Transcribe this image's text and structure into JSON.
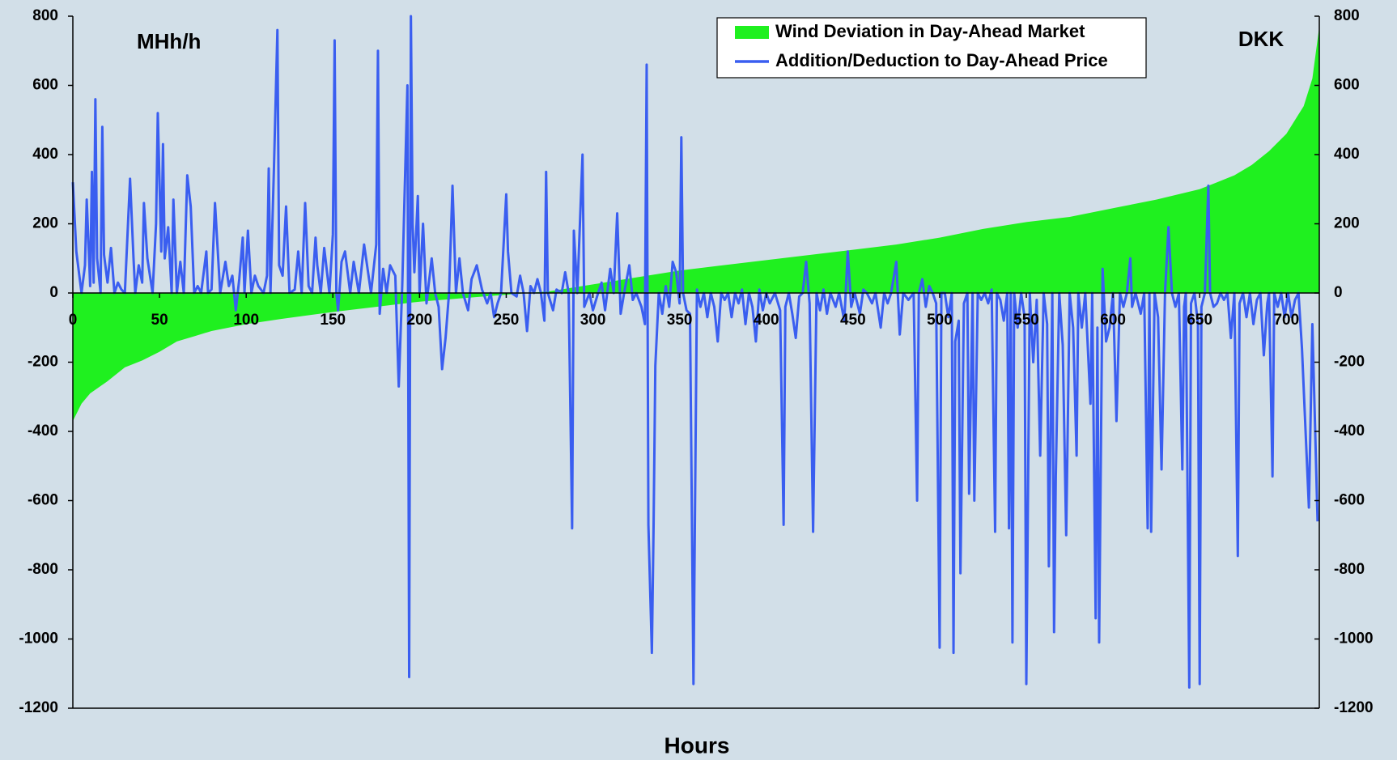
{
  "chart_data": {
    "type": "area-line",
    "x_label": "Hours",
    "annotations": [
      "MHh/h",
      "DKK"
    ],
    "xlim": [
      0,
      719
    ],
    "xticks": [
      0,
      50,
      100,
      150,
      200,
      250,
      300,
      350,
      400,
      450,
      500,
      550,
      600,
      650,
      700
    ],
    "ylim": [
      -1200,
      800
    ],
    "yticks": [
      -1200,
      -1000,
      -800,
      -600,
      -400,
      -200,
      0,
      200,
      400,
      600,
      800
    ],
    "y2lim": [
      -1200,
      800
    ],
    "y2ticks": [
      -1200,
      -1000,
      -800,
      -600,
      -400,
      -200,
      0,
      200,
      400,
      600,
      800
    ],
    "legend": "top-right",
    "series": [
      {
        "name": "Wind Deviation in Day-Ahead Market",
        "kind": "area",
        "color": "#1ff01f",
        "x": [
          0,
          5,
          10,
          20,
          30,
          40,
          50,
          60,
          70,
          80,
          100,
          120,
          150,
          175,
          200,
          225,
          250,
          275,
          300,
          325,
          350,
          375,
          400,
          425,
          450,
          475,
          500,
          525,
          550,
          575,
          600,
          625,
          650,
          660,
          670,
          680,
          690,
          700,
          710,
          715,
          719
        ],
        "values": [
          -370,
          -320,
          -290,
          -255,
          -215,
          -195,
          -170,
          -140,
          -125,
          -110,
          -90,
          -75,
          -55,
          -40,
          -25,
          -15,
          -5,
          5,
          25,
          45,
          65,
          80,
          95,
          110,
          125,
          140,
          160,
          185,
          205,
          220,
          245,
          270,
          300,
          320,
          340,
          370,
          410,
          460,
          540,
          620,
          770
        ]
      },
      {
        "name": "Addition/Deduction to Day-Ahead Price",
        "kind": "line",
        "axis": "y2",
        "color": "#3a5ef0",
        "x": [
          0,
          2,
          5,
          7,
          8,
          10,
          11,
          12,
          13,
          14,
          16,
          17,
          18,
          20,
          22,
          24,
          26,
          28,
          30,
          33,
          35,
          36,
          38,
          40,
          41,
          43,
          46,
          48,
          49,
          51,
          52,
          53,
          55,
          57,
          58,
          60,
          62,
          64,
          66,
          68,
          70,
          72,
          74,
          77,
          78,
          80,
          82,
          85,
          88,
          90,
          92,
          94,
          96,
          98,
          99,
          101,
          103,
          105,
          107,
          110,
          112,
          113,
          114,
          116,
          118,
          119,
          121,
          123,
          125,
          128,
          130,
          132,
          134,
          136,
          138,
          140,
          141,
          143,
          145,
          148,
          150,
          151,
          152,
          153,
          155,
          157,
          160,
          162,
          165,
          168,
          170,
          172,
          175,
          176,
          177,
          179,
          181,
          183,
          186,
          188,
          190,
          193,
          194,
          195,
          196,
          197,
          199,
          200,
          202,
          204,
          207,
          209,
          211,
          213,
          215,
          217,
          219,
          221,
          223,
          225,
          228,
          230,
          233,
          236,
          239,
          241,
          243,
          245,
          247,
          250,
          251,
          253,
          256,
          258,
          260,
          262,
          264,
          266,
          268,
          270,
          272,
          273,
          274,
          277,
          279,
          282,
          284,
          286,
          288,
          289,
          291,
          294,
          295,
          298,
          300,
          303,
          305,
          307,
          310,
          312,
          314,
          316,
          318,
          321,
          323,
          325,
          328,
          330,
          331,
          332,
          334,
          335,
          336,
          338,
          340,
          342,
          344,
          346,
          348,
          350,
          351,
          352,
          354,
          356,
          358,
          360,
          362,
          364,
          366,
          368,
          370,
          372,
          374,
          376,
          378,
          380,
          382,
          384,
          386,
          388,
          390,
          392,
          394,
          396,
          398,
          400,
          402,
          405,
          408,
          410,
          411,
          413,
          415,
          417,
          419,
          421,
          423,
          425,
          427,
          429,
          431,
          433,
          435,
          437,
          440,
          442,
          445,
          447,
          449,
          451,
          454,
          456,
          458,
          461,
          463,
          466,
          468,
          470,
          472,
          475,
          477,
          479,
          482,
          485,
          487,
          488,
          490,
          492,
          494,
          496,
          498,
          500,
          501,
          503,
          505,
          507,
          508,
          509,
          511,
          512,
          514,
          516,
          517,
          519,
          520,
          522,
          524,
          526,
          528,
          530,
          532,
          533,
          535,
          537,
          539,
          540,
          541,
          542,
          543,
          545,
          547,
          549,
          550,
          552,
          554,
          556,
          558,
          560,
          562,
          563,
          565,
          566,
          567,
          569,
          571,
          573,
          575,
          577,
          579,
          580,
          582,
          584,
          587,
          588,
          590,
          591,
          592,
          594,
          596,
          598,
          600,
          602,
          604,
          606,
          608,
          610,
          611,
          613,
          616,
          618,
          620,
          621,
          622,
          624,
          626,
          628,
          630,
          632,
          634,
          636,
          638,
          640,
          641,
          642,
          644,
          645,
          647,
          649,
          650,
          651,
          653,
          655,
          656,
          658,
          660,
          662,
          664,
          666,
          668,
          670,
          672,
          673,
          675,
          677,
          679,
          681,
          683,
          685,
          687,
          689,
          690,
          692,
          693,
          695,
          697,
          699,
          701,
          703,
          705,
          707,
          709,
          713,
          715,
          718
        ],
        "values": [
          320,
          120,
          0,
          80,
          270,
          20,
          350,
          30,
          560,
          100,
          0,
          480,
          110,
          30,
          130,
          0,
          30,
          10,
          0,
          330,
          100,
          0,
          80,
          30,
          260,
          100,
          0,
          200,
          520,
          120,
          430,
          100,
          190,
          0,
          270,
          0,
          90,
          0,
          340,
          250,
          0,
          20,
          0,
          120,
          0,
          10,
          260,
          0,
          90,
          20,
          50,
          -50,
          40,
          160,
          0,
          180,
          0,
          50,
          20,
          0,
          50,
          360,
          0,
          360,
          760,
          80,
          50,
          250,
          0,
          10,
          120,
          0,
          260,
          20,
          0,
          160,
          80,
          0,
          130,
          0,
          170,
          730,
          0,
          -50,
          90,
          120,
          0,
          90,
          0,
          140,
          70,
          0,
          140,
          700,
          -60,
          70,
          0,
          80,
          50,
          -270,
          20,
          600,
          -1110,
          800,
          200,
          60,
          280,
          0,
          200,
          -30,
          100,
          0,
          -40,
          -220,
          -130,
          0,
          310,
          0,
          100,
          0,
          -50,
          40,
          80,
          10,
          -30,
          0,
          -70,
          -30,
          0,
          285,
          120,
          0,
          -10,
          50,
          0,
          -110,
          20,
          0,
          40,
          0,
          -80,
          350,
          0,
          -50,
          10,
          0,
          60,
          0,
          -680,
          180,
          0,
          400,
          -40,
          0,
          -50,
          0,
          30,
          -50,
          70,
          0,
          230,
          -60,
          0,
          80,
          -20,
          0,
          -40,
          -90,
          660,
          -670,
          -1040,
          -670,
          -210,
          0,
          -60,
          20,
          -40,
          90,
          60,
          -30,
          450,
          0,
          -50,
          -60,
          -1130,
          10,
          -40,
          0,
          -70,
          0,
          -40,
          -140,
          0,
          -20,
          0,
          -70,
          0,
          -30,
          10,
          -90,
          0,
          -40,
          -140,
          10,
          -50,
          0,
          -30,
          0,
          -50,
          -670,
          -40,
          0,
          -60,
          -130,
          -10,
          0,
          90,
          -30,
          -690,
          0,
          -50,
          10,
          -60,
          0,
          -40,
          0,
          -80,
          120,
          -40,
          0,
          -60,
          10,
          0,
          -30,
          0,
          -100,
          0,
          -30,
          0,
          90,
          -120,
          0,
          -20,
          0,
          -600,
          0,
          40,
          -40,
          20,
          0,
          -30,
          -1025,
          0,
          0,
          -70,
          0,
          -1040,
          -140,
          -80,
          -810,
          -30,
          0,
          -580,
          0,
          -600,
          0,
          -20,
          0,
          -30,
          10,
          -690,
          0,
          -20,
          -80,
          0,
          -680,
          0,
          -1010,
          0,
          -100,
          0,
          -70,
          -1130,
          0,
          -200,
          -20,
          -470,
          0,
          -90,
          -790,
          0,
          -980,
          -530,
          0,
          -150,
          -700,
          0,
          -100,
          -470,
          0,
          -100,
          0,
          -320,
          0,
          -940,
          -100,
          -1010,
          70,
          -140,
          -100,
          0,
          -370,
          0,
          -40,
          0,
          100,
          -40,
          0,
          -60,
          0,
          -680,
          0,
          -690,
          0,
          -70,
          -510,
          0,
          190,
          0,
          -40,
          0,
          -510,
          -40,
          0,
          -1140,
          -30,
          0,
          -90,
          -1130,
          -40,
          0,
          310,
          0,
          -40,
          -30,
          0,
          -20,
          0,
          -130,
          0,
          -760,
          -30,
          0,
          -70,
          0,
          -90,
          -20,
          0,
          -180,
          -30,
          0,
          -530,
          0,
          -40,
          0,
          -70,
          0,
          -70,
          -20,
          0,
          -160,
          -620,
          -90,
          -660
        ]
      }
    ]
  }
}
